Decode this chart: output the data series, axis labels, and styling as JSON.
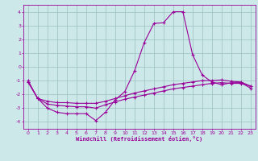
{
  "xlabel": "Windchill (Refroidissement éolien,°C)",
  "bg_color": "#cde8e8",
  "grid_color": "#9bbfbf",
  "line_color": "#990099",
  "x_hours": [
    0,
    1,
    2,
    3,
    4,
    5,
    6,
    7,
    8,
    9,
    10,
    11,
    12,
    13,
    14,
    15,
    16,
    17,
    18,
    19,
    20,
    21,
    22,
    23
  ],
  "curve1": [
    -1.0,
    -2.3,
    -3.0,
    -3.3,
    -3.4,
    -3.4,
    -3.4,
    -3.9,
    -3.3,
    -2.4,
    -1.8,
    -0.3,
    1.75,
    3.15,
    3.2,
    4.0,
    4.0,
    0.9,
    -0.6,
    -1.1,
    -1.3,
    -1.15,
    -1.15,
    -1.55
  ],
  "curve2": [
    -1.1,
    -2.3,
    -2.5,
    -2.6,
    -2.6,
    -2.65,
    -2.65,
    -2.65,
    -2.5,
    -2.3,
    -2.1,
    -1.9,
    -1.75,
    -1.6,
    -1.45,
    -1.3,
    -1.2,
    -1.1,
    -1.0,
    -1.0,
    -0.95,
    -1.05,
    -1.1,
    -1.4
  ],
  "curve3": [
    -1.1,
    -2.3,
    -2.7,
    -2.8,
    -2.85,
    -2.9,
    -2.9,
    -3.0,
    -2.75,
    -2.55,
    -2.35,
    -2.2,
    -2.05,
    -1.9,
    -1.75,
    -1.6,
    -1.5,
    -1.4,
    -1.3,
    -1.2,
    -1.15,
    -1.2,
    -1.2,
    -1.4
  ],
  "ylim": [
    -4.5,
    4.5
  ],
  "xlim": [
    -0.5,
    23.5
  ],
  "yticks": [
    -4,
    -3,
    -2,
    -1,
    0,
    1,
    2,
    3,
    4
  ],
  "xticks": [
    0,
    1,
    2,
    3,
    4,
    5,
    6,
    7,
    8,
    9,
    10,
    11,
    12,
    13,
    14,
    15,
    16,
    17,
    18,
    19,
    20,
    21,
    22,
    23
  ]
}
